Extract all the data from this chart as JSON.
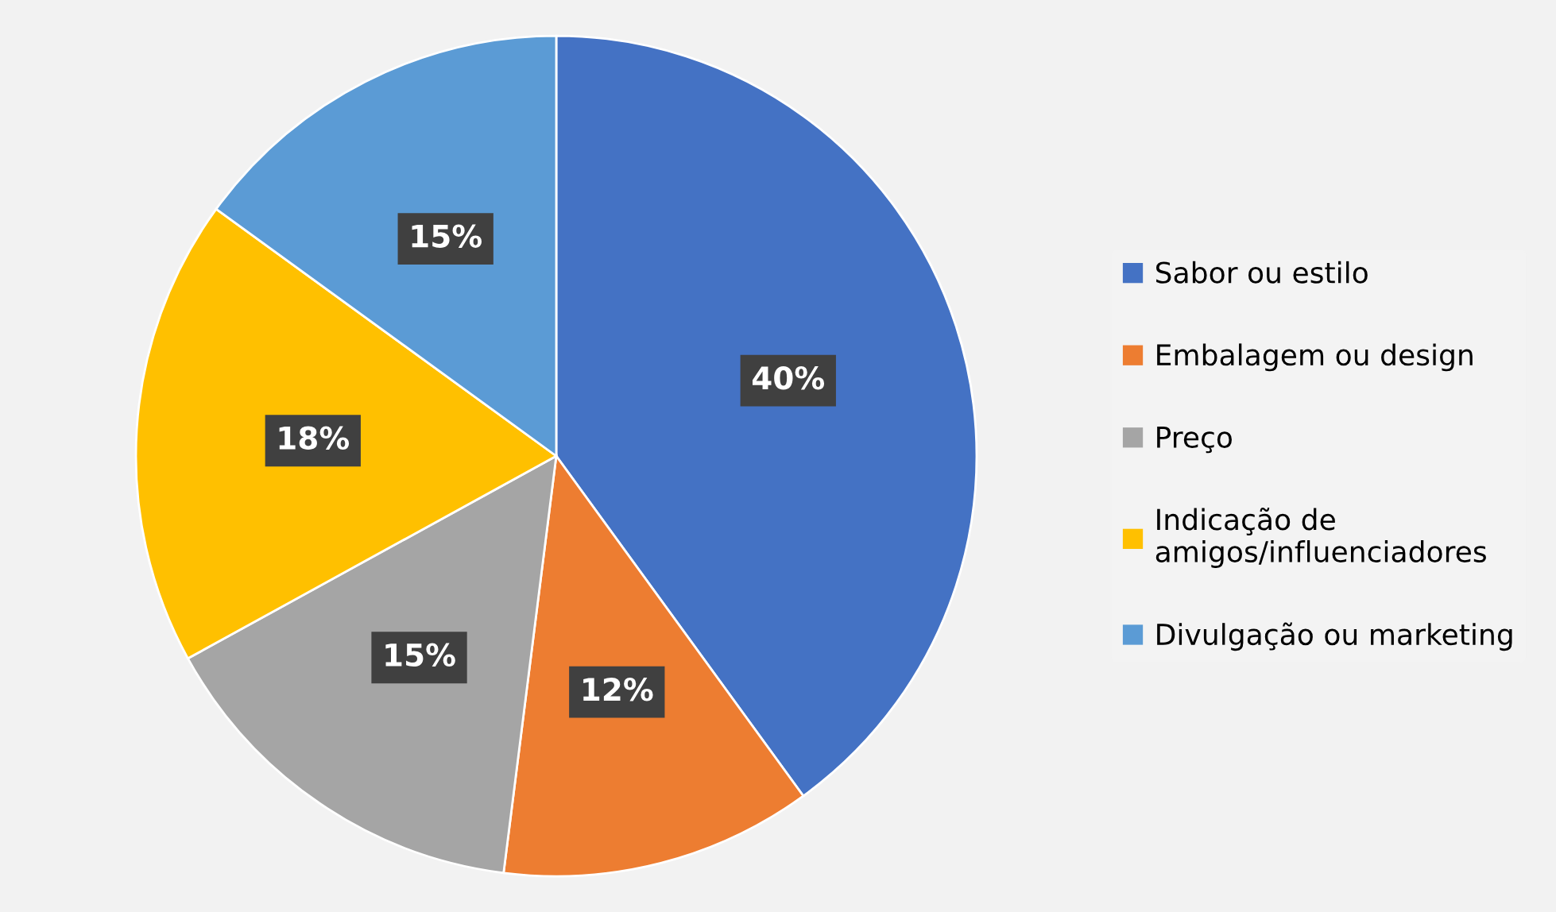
{
  "chart_data": {
    "type": "pie",
    "categories": [
      "Sabor ou estilo",
      "Embalagem ou design",
      "Preço",
      "Indicação de\namigos/influenciadores",
      "Divulgação ou marketing"
    ],
    "values": [
      40,
      12,
      15,
      18,
      15
    ],
    "colors": [
      "#4472c4",
      "#ed7d31",
      "#a5a5a5",
      "#ffc000",
      "#5b9bd5"
    ],
    "value_labels": [
      "40%",
      "12%",
      "15%",
      "18%",
      "15%"
    ],
    "legend": "right"
  }
}
